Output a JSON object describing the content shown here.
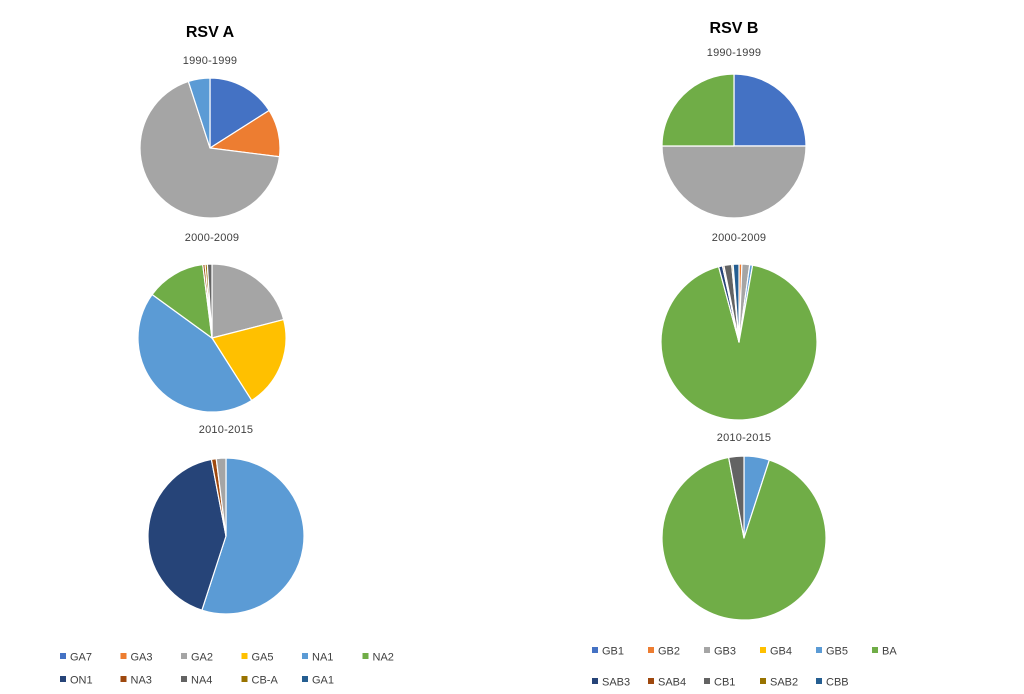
{
  "chart_data": [
    {
      "type": "pie",
      "group": "RSV A",
      "title": "1990-1999",
      "series": [
        {
          "name": "GA7",
          "value": 16,
          "color": "#4472C4"
        },
        {
          "name": "GA3",
          "value": 11,
          "color": "#ED7D31"
        },
        {
          "name": "GA2",
          "value": 68,
          "color": "#A5A5A5"
        },
        {
          "name": "NA1",
          "value": 5,
          "color": "#5B9BD5"
        }
      ]
    },
    {
      "type": "pie",
      "group": "RSV A",
      "title": "2000-2009",
      "series": [
        {
          "name": "GA2",
          "value": 21,
          "color": "#A5A5A5"
        },
        {
          "name": "GA5",
          "value": 20,
          "color": "#FFC000"
        },
        {
          "name": "NA1",
          "value": 44,
          "color": "#5B9BD5"
        },
        {
          "name": "NA2",
          "value": 13,
          "color": "#70AD47"
        },
        {
          "name": "NA3",
          "value": 0.5,
          "color": "#9E480E"
        },
        {
          "name": "CB-A",
          "value": 0.5,
          "color": "#997300"
        },
        {
          "name": "NA4",
          "value": 1,
          "color": "#636363"
        }
      ]
    },
    {
      "type": "pie",
      "group": "RSV A",
      "title": "2010-2015",
      "series": [
        {
          "name": "NA1",
          "value": 55,
          "color": "#5B9BD5"
        },
        {
          "name": "ON1",
          "value": 42,
          "color": "#264478"
        },
        {
          "name": "NA3",
          "value": 1,
          "color": "#9E480E"
        },
        {
          "name": "GA2",
          "value": 2,
          "color": "#A5A5A5"
        }
      ]
    },
    {
      "type": "pie",
      "group": "RSV B",
      "title": "1990-1999",
      "series": [
        {
          "name": "GB1",
          "value": 25,
          "color": "#4472C4"
        },
        {
          "name": "GB3",
          "value": 50,
          "color": "#A5A5A5"
        },
        {
          "name": "BA",
          "value": 25,
          "color": "#70AD47"
        }
      ]
    },
    {
      "type": "pie",
      "group": "RSV B",
      "title": "2000-2009",
      "series": [
        {
          "name": "GB2",
          "value": 0.6,
          "color": "#ED7D31"
        },
        {
          "name": "GB3",
          "value": 1.6,
          "color": "#A5A5A5"
        },
        {
          "name": "GB5",
          "value": 0.6,
          "color": "#5B9BD5"
        },
        {
          "name": "BA",
          "value": 93,
          "color": "#70AD47"
        },
        {
          "name": "SAB3",
          "value": 0.8,
          "color": "#264478"
        },
        {
          "name": "SAB4",
          "value": 0.3,
          "color": "#9E480E"
        },
        {
          "name": "CB1",
          "value": 1.6,
          "color": "#636363"
        },
        {
          "name": "SAB2",
          "value": 0.3,
          "color": "#997300"
        },
        {
          "name": "CBB",
          "value": 1.2,
          "color": "#255E91"
        }
      ]
    },
    {
      "type": "pie",
      "group": "RSV B",
      "title": "2010-2015",
      "series": [
        {
          "name": "GB5",
          "value": 5,
          "color": "#5B9BD5"
        },
        {
          "name": "BA",
          "value": 92,
          "color": "#70AD47"
        },
        {
          "name": "CB1",
          "value": 3,
          "color": "#636363"
        }
      ]
    }
  ],
  "groups": {
    "a": {
      "title": "RSV A"
    },
    "b": {
      "title": "RSV B"
    }
  },
  "legends": {
    "a": [
      [
        {
          "name": "GA7",
          "color": "#4472C4"
        },
        {
          "name": "GA3",
          "color": "#ED7D31"
        },
        {
          "name": "GA2",
          "color": "#A5A5A5"
        },
        {
          "name": "GA5",
          "color": "#FFC000"
        },
        {
          "name": "NA1",
          "color": "#5B9BD5"
        },
        {
          "name": "NA2",
          "color": "#70AD47"
        }
      ],
      [
        {
          "name": "ON1",
          "color": "#264478"
        },
        {
          "name": "NA3",
          "color": "#9E480E"
        },
        {
          "name": "NA4",
          "color": "#636363"
        },
        {
          "name": "CB-A",
          "color": "#997300"
        },
        {
          "name": "GA1",
          "color": "#255E91"
        }
      ]
    ],
    "b": [
      [
        {
          "name": "GB1",
          "color": "#4472C4"
        },
        {
          "name": "GB2",
          "color": "#ED7D31"
        },
        {
          "name": "GB3",
          "color": "#A5A5A5"
        },
        {
          "name": "GB4",
          "color": "#FFC000"
        },
        {
          "name": "GB5",
          "color": "#5B9BD5"
        },
        {
          "name": "BA",
          "color": "#70AD47"
        }
      ],
      [
        {
          "name": "SAB3",
          "color": "#264478"
        },
        {
          "name": "SAB4",
          "color": "#9E480E"
        },
        {
          "name": "CB1",
          "color": "#636363"
        },
        {
          "name": "SAB2",
          "color": "#997300"
        },
        {
          "name": "CBB",
          "color": "#255E91"
        }
      ]
    ]
  }
}
